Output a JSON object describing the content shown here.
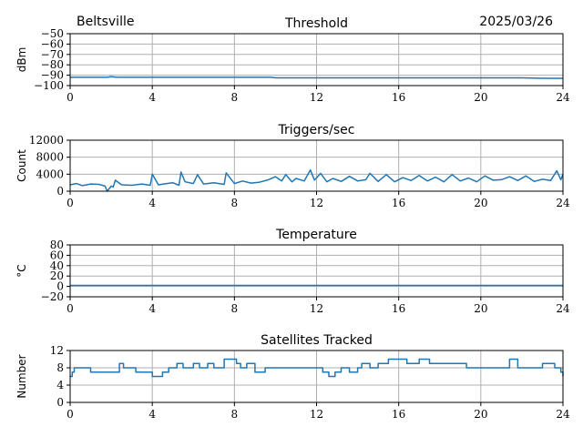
{
  "header": {
    "station": "Beltsville",
    "date": "2025/03/26"
  },
  "chart_data": [
    {
      "type": "line",
      "title": "Threshold",
      "ylabel": "dBm",
      "xlim": [
        0,
        24
      ],
      "ylim": [
        -100,
        -50
      ],
      "xticks": [
        0,
        4,
        8,
        12,
        16,
        20,
        24
      ],
      "yticks": [
        -100,
        -90,
        -80,
        -70,
        -60,
        -50
      ],
      "ytick_labels": [
        "−100",
        "−90",
        "−80",
        "−70",
        "−60",
        "−50"
      ],
      "grid": true,
      "series": [
        {
          "color": "#1f77b4",
          "x": [
            0,
            1,
            1.8,
            2,
            2.3,
            3,
            4,
            5,
            6,
            7,
            8,
            9,
            9.8,
            10,
            12,
            14,
            16,
            18,
            20,
            22,
            23,
            24
          ],
          "y": [
            -92,
            -92,
            -92,
            -91.5,
            -92,
            -92,
            -92,
            -92,
            -92,
            -92,
            -92,
            -92,
            -92,
            -92.5,
            -92.5,
            -92.5,
            -92.5,
            -92.5,
            -92.5,
            -92.5,
            -93,
            -93
          ]
        }
      ]
    },
    {
      "type": "line",
      "title": "Triggers/sec",
      "ylabel": "Count",
      "xlim": [
        0,
        24
      ],
      "ylim": [
        0,
        12000
      ],
      "xticks": [
        0,
        4,
        8,
        12,
        16,
        20,
        24
      ],
      "yticks": [
        0,
        4000,
        8000,
        12000
      ],
      "ytick_labels": [
        "0",
        "4000",
        "8000",
        "12000"
      ],
      "grid": true,
      "series": [
        {
          "color": "#1f77b4",
          "x": [
            0,
            0.3,
            0.6,
            1,
            1.4,
            1.7,
            1.8,
            2.0,
            2.1,
            2.2,
            2.5,
            3,
            3.5,
            3.9,
            4,
            4.3,
            4.7,
            5,
            5.3,
            5.4,
            5.6,
            6,
            6.2,
            6.5,
            7,
            7.5,
            7.6,
            8,
            8.4,
            8.8,
            9.2,
            9.6,
            10,
            10.3,
            10.5,
            10.8,
            11,
            11.4,
            11.7,
            11.9,
            12.2,
            12.5,
            12.8,
            13.2,
            13.6,
            14,
            14.4,
            14.6,
            15,
            15.4,
            15.8,
            16.2,
            16.6,
            17,
            17.4,
            17.8,
            18.2,
            18.6,
            19,
            19.4,
            19.8,
            20.2,
            20.6,
            21,
            21.4,
            21.8,
            22.2,
            22.6,
            23,
            23.4,
            23.7,
            23.9,
            24
          ],
          "y": [
            1500,
            1800,
            1300,
            1700,
            1600,
            1200,
            0,
            1200,
            1000,
            2600,
            1500,
            1400,
            1700,
            1400,
            4000,
            1500,
            1800,
            2000,
            1400,
            4500,
            2200,
            1800,
            3900,
            1700,
            2000,
            1600,
            4300,
            1800,
            2400,
            1900,
            2100,
            2600,
            3400,
            2400,
            3900,
            2200,
            3000,
            2400,
            5000,
            2600,
            4200,
            2200,
            3000,
            2300,
            3500,
            2400,
            2700,
            4200,
            2300,
            3900,
            2200,
            3200,
            2500,
            3700,
            2400,
            3300,
            2200,
            3900,
            2400,
            3100,
            2200,
            3600,
            2600,
            2700,
            3400,
            2500,
            3600,
            2300,
            2800,
            2500,
            4800,
            2700,
            4000
          ]
        }
      ]
    },
    {
      "type": "line",
      "title": "Temperature",
      "ylabel": "°C",
      "xlim": [
        0,
        24
      ],
      "ylim": [
        -20,
        80
      ],
      "xticks": [
        0,
        4,
        8,
        12,
        16,
        20,
        24
      ],
      "yticks": [
        -20,
        0,
        20,
        40,
        60,
        80
      ],
      "ytick_labels": [
        "−20",
        "0",
        "20",
        "40",
        "60",
        "80"
      ],
      "grid": true,
      "series": [
        {
          "color": "#1f77b4",
          "x": [
            0,
            24
          ],
          "y": [
            2,
            2
          ]
        }
      ]
    },
    {
      "type": "line",
      "title": "Satellites Tracked",
      "ylabel": "Number",
      "xlim": [
        0,
        24
      ],
      "ylim": [
        0,
        12
      ],
      "xticks": [
        0,
        4,
        8,
        12,
        16,
        20,
        24
      ],
      "yticks": [
        0,
        4,
        8,
        12
      ],
      "ytick_labels": [
        "0",
        "4",
        "8",
        "12"
      ],
      "grid": true,
      "series": [
        {
          "color": "#1f77b4",
          "step": true,
          "x": [
            0,
            0.1,
            0.2,
            0.4,
            1.0,
            1.3,
            2.4,
            2.6,
            3.0,
            3.2,
            3.5,
            4.0,
            4.5,
            4.8,
            5.2,
            5.5,
            6.0,
            6.3,
            6.7,
            7.0,
            7.5,
            7.7,
            8.1,
            8.3,
            8.6,
            9.0,
            9.5,
            10.0,
            10.5,
            11.0,
            11.5,
            12.3,
            12.6,
            12.9,
            13.2,
            13.6,
            14.0,
            14.2,
            14.6,
            15.0,
            15.5,
            16.0,
            16.4,
            17.0,
            17.5,
            18.0,
            18.6,
            19.3,
            20.0,
            20.5,
            21.0,
            21.4,
            21.8,
            22.5,
            23.0,
            23.6,
            23.9,
            24
          ],
          "y": [
            6,
            7,
            8,
            8,
            7,
            7,
            9,
            8,
            8,
            7,
            7,
            6,
            7,
            8,
            9,
            8,
            9,
            8,
            9,
            8,
            10,
            10,
            9,
            8,
            9,
            7,
            8,
            8,
            8,
            8,
            8,
            7,
            6,
            7,
            8,
            7,
            8,
            9,
            8,
            9,
            10,
            10,
            9,
            10,
            9,
            9,
            9,
            8,
            8,
            8,
            8,
            10,
            8,
            8,
            9,
            8,
            7,
            6
          ]
        }
      ]
    }
  ]
}
